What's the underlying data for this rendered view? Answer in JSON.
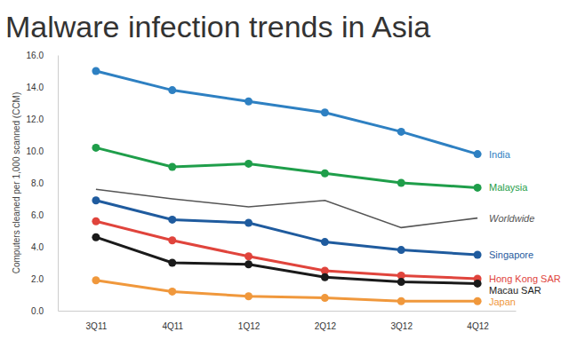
{
  "chart_data": {
    "type": "line",
    "title": "Malware infection trends in Asia",
    "y_label": "Computers cleaned per 1,000 scanned (CCM)",
    "categories": [
      "3Q11",
      "4Q11",
      "1Q12",
      "2Q12",
      "3Q12",
      "4Q12"
    ],
    "ylim": [
      0,
      16
    ],
    "yticks": [
      {
        "value": 0,
        "label": "0.0"
      },
      {
        "value": 2,
        "label": "2.0"
      },
      {
        "value": 4,
        "label": "4.0"
      },
      {
        "value": 6,
        "label": "6.0"
      },
      {
        "value": 8,
        "label": "8.0"
      },
      {
        "value": 10,
        "label": "10.0"
      },
      {
        "value": 12,
        "label": "12.0"
      },
      {
        "value": 14,
        "label": "14.0"
      },
      {
        "value": 16,
        "label": "16.0"
      }
    ],
    "grid": false,
    "legend": "right",
    "series": [
      {
        "name": "India",
        "color": "#2e80c2",
        "marker": "circle",
        "line_style": "solid",
        "values": [
          15.0,
          13.8,
          13.1,
          12.4,
          11.2,
          9.8
        ]
      },
      {
        "name": "Malaysia",
        "color": "#1f9e4a",
        "marker": "circle",
        "line_style": "solid",
        "values": [
          10.2,
          9.0,
          9.2,
          8.6,
          8.0,
          7.7
        ]
      },
      {
        "name": "Worldwide",
        "color": "#555555",
        "marker": "none",
        "line_style": "solid",
        "values": [
          7.6,
          7.0,
          6.5,
          6.9,
          5.2,
          5.8
        ]
      },
      {
        "name": "Singapore",
        "color": "#1f5b9e",
        "marker": "circle",
        "line_style": "solid",
        "values": [
          6.9,
          5.7,
          5.5,
          4.3,
          3.8,
          3.5
        ]
      },
      {
        "name": "Hong Kong SAR",
        "color": "#e0443c",
        "marker": "circle",
        "line_style": "solid",
        "values": [
          5.6,
          4.4,
          3.4,
          2.5,
          2.2,
          2.0
        ]
      },
      {
        "name": "Macau SAR",
        "color": "#1a1a1a",
        "marker": "circle",
        "line_style": "solid",
        "values": [
          4.6,
          3.0,
          2.9,
          2.1,
          1.8,
          1.7
        ]
      },
      {
        "name": "Japan",
        "color": "#f0983c",
        "marker": "circle",
        "line_style": "solid",
        "values": [
          1.9,
          1.2,
          0.9,
          0.8,
          0.6,
          0.6
        ]
      }
    ]
  }
}
